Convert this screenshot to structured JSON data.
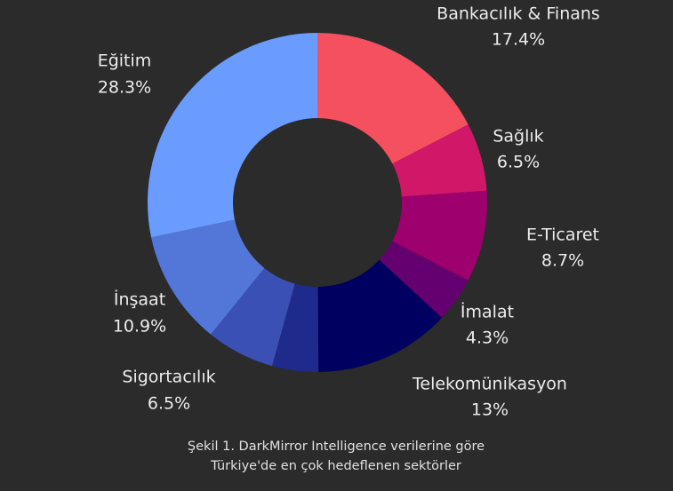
{
  "chart_data": {
    "type": "donut",
    "categories": [
      "Bankacılık & Finans",
      "Sağlık",
      "E-Ticaret",
      "İmalat",
      "Telekomünikasyon",
      null,
      "Sigortacılık",
      "İnşaat",
      "Eğitim"
    ],
    "values": [
      17.4,
      6.5,
      8.7,
      4.3,
      13,
      4.4,
      6.5,
      10.9,
      28.3
    ],
    "value_labels": [
      "17.4%",
      "6.5%",
      "8.7%",
      "4.3%",
      "13%",
      null,
      "6.5%",
      "10.9%",
      "28.3%"
    ],
    "colors": [
      "#f4505f",
      "#d11868",
      "#9e006e",
      "#640070",
      "#000060",
      "#1e2a8c",
      "#3a50b4",
      "#5277d8",
      "#6a9cff"
    ],
    "caption": "Şekil 1. DarkMirror Intelligence verilerine göre Türkiye'de en çok hedeflenen sektörler"
  }
}
